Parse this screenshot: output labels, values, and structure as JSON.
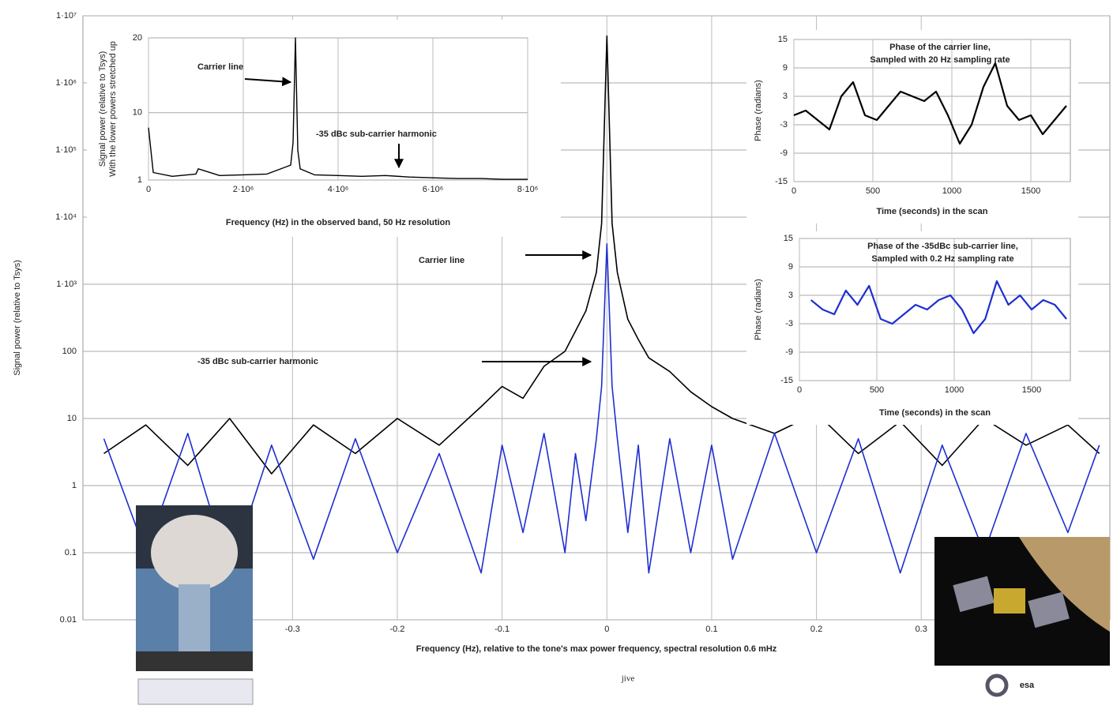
{
  "chart_data": [
    {
      "type": "line",
      "ylog": true,
      "grid": true,
      "ylabel": "Signal power (relative to Tsys)",
      "xlabel": "Frequency (Hz), relative to the tone's max power frequency, spectral resolution 0.6 mHz",
      "annotations": [
        "Carrier line",
        "-35 dBc sub-carrier harmonic"
      ],
      "xlim": [
        -0.5,
        0.48
      ],
      "ylim": [
        0.01,
        10000000
      ],
      "xticks": [
        -0.3,
        -0.2,
        -0.1,
        0,
        0.1,
        0.2,
        0.3
      ],
      "yticks": [
        0.01,
        0.1,
        1,
        10,
        100,
        {
          "value": 1000,
          "label": "1·10³"
        },
        {
          "value": 10000,
          "label": "1·10⁴"
        },
        {
          "value": 100000,
          "label": "1·10⁵"
        },
        {
          "value": 1000000,
          "label": "1·10⁶"
        },
        {
          "value": 10000000,
          "label": "1·10⁷"
        }
      ],
      "x": [
        -0.48,
        -0.44,
        -0.4,
        -0.36,
        -0.32,
        -0.28,
        -0.24,
        -0.2,
        -0.16,
        -0.12,
        -0.1,
        -0.08,
        -0.06,
        -0.04,
        -0.03,
        -0.02,
        -0.01,
        -0.005,
        0,
        0.005,
        0.01,
        0.02,
        0.03,
        0.04,
        0.06,
        0.08,
        0.1,
        0.12,
        0.16,
        0.2,
        0.24,
        0.28,
        0.32,
        0.36,
        0.4,
        0.44,
        0.47
      ],
      "series": [
        {
          "color": "#000000",
          "values": [
            3,
            8,
            2,
            10,
            1.5,
            8,
            3,
            10,
            4,
            15,
            30,
            20,
            60,
            100,
            200,
            400,
            1500,
            8000,
            5000000,
            8000,
            1500,
            300,
            150,
            80,
            50,
            25,
            15,
            10,
            6,
            12,
            3,
            9,
            2,
            10,
            4,
            8,
            3
          ]
        },
        {
          "color": "#1f2fd0",
          "values": [
            5,
            0.1,
            6,
            0.05,
            4,
            0.08,
            5,
            0.1,
            3,
            0.05,
            4,
            0.2,
            6,
            0.1,
            3,
            0.3,
            5,
            30,
            4000,
            30,
            5,
            0.2,
            4,
            0.05,
            5,
            0.1,
            4,
            0.08,
            6,
            0.1,
            5,
            0.05,
            4,
            0.1,
            6,
            0.2,
            4
          ]
        }
      ]
    },
    {
      "type": "line",
      "grid": true,
      "ylabel": "Signal power (relative to Tsys)",
      "ylabel_note": "With the lower powers stretched up",
      "xlabel": "Frequency (Hz) in the observed band, 50 Hz resolution",
      "annotations": [
        "Carrier line",
        "-35 dBc sub-carrier harmonic"
      ],
      "xlim": [
        0,
        8000000
      ],
      "ylim": [
        1,
        20
      ],
      "xticks": [
        0,
        {
          "value": 2000000,
          "label": "2·10⁶"
        },
        {
          "value": 4000000,
          "label": "4·10⁶"
        },
        {
          "value": 6000000,
          "label": "6·10⁶"
        },
        {
          "value": 8000000,
          "label": "8·10⁶"
        }
      ],
      "yticks": [
        1,
        10,
        20
      ],
      "x": [
        0,
        100000,
        500000,
        1000000,
        1050000,
        1500000,
        2000000,
        2500000,
        3000000,
        3050000,
        3100000,
        3150000,
        3200000,
        3500000,
        4000000,
        4500000,
        5000000,
        5500000,
        6000000,
        6500000,
        7000000,
        7500000,
        8000000
      ],
      "series": [
        {
          "color": "#000000",
          "values": [
            8,
            2,
            1.5,
            1.8,
            2.5,
            1.6,
            1.7,
            1.8,
            3,
            6,
            20,
            5,
            2.5,
            1.7,
            1.6,
            1.5,
            1.6,
            1.4,
            1.3,
            1.2,
            1.2,
            1.1,
            1.1
          ]
        }
      ]
    },
    {
      "type": "line",
      "grid": true,
      "title": "Phase of the carrier line,",
      "subtitle": "Sampled with 20 Hz sampling rate",
      "ylabel": "Phase (radians)",
      "xlabel": "Time (seconds) in the scan",
      "xlim": [
        0,
        1750
      ],
      "ylim": [
        -15,
        15
      ],
      "xticks": [
        0,
        500,
        1000,
        1500
      ],
      "yticks": [
        -15,
        -9,
        -3,
        3,
        9,
        15
      ],
      "x": [
        0,
        75,
        150,
        225,
        300,
        375,
        450,
        525,
        600,
        675,
        750,
        825,
        900,
        975,
        1050,
        1125,
        1200,
        1275,
        1350,
        1425,
        1500,
        1575,
        1650,
        1725
      ],
      "series": [
        {
          "color": "#000000",
          "values": [
            -1,
            0,
            -2,
            -4,
            3,
            6,
            -1,
            -2,
            1,
            4,
            3,
            2,
            4,
            -1,
            -7,
            -3,
            5,
            10,
            1,
            -2,
            -1,
            -5,
            -2,
            1
          ]
        }
      ]
    },
    {
      "type": "line",
      "grid": true,
      "title": "Phase of the -35dBc sub-carrier line,",
      "subtitle": "Sampled with 0.2 Hz sampling rate",
      "ylabel": "Phase (radians)",
      "xlabel": "Time (seconds) in the scan",
      "xlim": [
        0,
        1750
      ],
      "ylim": [
        -15,
        15
      ],
      "xticks": [
        0,
        500,
        1000,
        1500
      ],
      "yticks": [
        -15,
        -9,
        -3,
        3,
        9,
        15
      ],
      "x": [
        75,
        150,
        225,
        300,
        375,
        450,
        525,
        600,
        675,
        750,
        825,
        900,
        975,
        1050,
        1125,
        1200,
        1275,
        1350,
        1425,
        1500,
        1575,
        1650,
        1725
      ],
      "series": [
        {
          "color": "#1f2fd0",
          "values": [
            2,
            0,
            -1,
            4,
            1,
            5,
            -2,
            -3,
            -1,
            1,
            0,
            2,
            3,
            0,
            -5,
            -2,
            6,
            1,
            3,
            0,
            2,
            1,
            -2
          ]
        }
      ]
    }
  ],
  "logos": {
    "jive": "jive",
    "esa": "esa"
  }
}
